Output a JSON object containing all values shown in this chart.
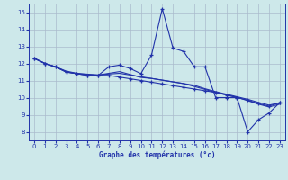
{
  "xlabel": "Graphe des températures (°c)",
  "bg_color": "#cde8ea",
  "grid_color": "#aabbcc",
  "line_color": "#2233aa",
  "ylim": [
    7.5,
    15.5
  ],
  "yticks": [
    8,
    9,
    10,
    11,
    12,
    13,
    14,
    15
  ],
  "xlim": [
    -0.5,
    23.5
  ],
  "xticks": [
    0,
    1,
    2,
    3,
    4,
    5,
    6,
    7,
    8,
    9,
    10,
    11,
    12,
    13,
    14,
    15,
    16,
    17,
    18,
    19,
    20,
    21,
    22,
    23
  ],
  "series1_x": [
    0,
    1,
    2,
    3,
    4,
    5,
    6,
    7,
    8,
    9,
    10,
    11,
    12,
    13,
    14,
    15,
    16,
    17,
    18,
    19,
    20,
    21,
    22,
    23
  ],
  "series1_y": [
    12.3,
    12.0,
    11.8,
    11.5,
    11.4,
    11.3,
    11.3,
    11.8,
    11.9,
    11.7,
    11.4,
    12.5,
    15.2,
    12.9,
    12.7,
    11.8,
    11.8,
    10.0,
    10.0,
    10.0,
    8.0,
    8.7,
    9.1,
    9.7
  ],
  "series2_x": [
    0,
    1,
    2,
    3,
    4,
    5,
    6,
    7,
    8,
    9,
    10,
    11,
    12,
    13,
    14,
    15,
    16,
    17,
    18,
    19,
    20,
    21,
    22,
    23
  ],
  "series2_y": [
    12.3,
    12.0,
    11.8,
    11.5,
    11.4,
    11.3,
    11.3,
    11.3,
    11.2,
    11.1,
    11.0,
    10.9,
    10.8,
    10.7,
    10.6,
    10.5,
    10.4,
    10.3,
    10.15,
    10.0,
    9.85,
    9.65,
    9.5,
    9.7
  ],
  "series3_x": [
    0,
    1,
    2,
    3,
    4,
    5,
    6,
    7,
    8,
    9,
    10,
    11,
    12,
    13,
    14,
    15,
    16,
    17,
    18,
    19,
    20,
    21,
    22,
    23
  ],
  "series3_y": [
    12.3,
    12.0,
    11.8,
    11.5,
    11.4,
    11.35,
    11.32,
    11.38,
    11.42,
    11.32,
    11.22,
    11.12,
    11.02,
    10.92,
    10.82,
    10.72,
    10.52,
    10.35,
    10.2,
    10.05,
    9.9,
    9.72,
    9.56,
    9.7
  ],
  "series4_x": [
    0,
    1,
    2,
    3,
    4,
    5,
    6,
    7,
    8,
    9,
    10,
    11,
    12,
    13,
    14,
    15,
    16,
    17,
    18,
    19,
    20,
    21,
    22,
    23
  ],
  "series4_y": [
    12.3,
    12.0,
    11.8,
    11.55,
    11.42,
    11.37,
    11.32,
    11.42,
    11.52,
    11.35,
    11.18,
    11.12,
    11.02,
    10.92,
    10.82,
    10.65,
    10.48,
    10.3,
    10.16,
    10.02,
    9.82,
    9.62,
    9.45,
    9.62
  ]
}
